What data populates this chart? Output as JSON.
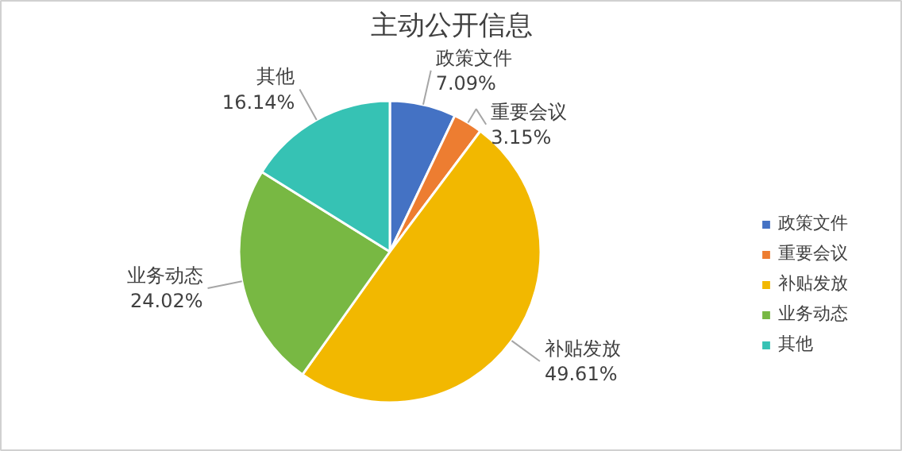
{
  "chart_data": {
    "type": "pie",
    "title": "主动公开信息",
    "categories": [
      "政策文件",
      "重要会议",
      "补贴发放",
      "业务动态",
      "其他"
    ],
    "values": [
      7.09,
      3.15,
      49.61,
      24.02,
      16.14
    ],
    "colors": [
      "#4472c4",
      "#ed7d31",
      "#f2b800",
      "#78b843",
      "#36c2b4"
    ],
    "value_labels": [
      "7.09%",
      "3.15%",
      "49.61%",
      "24.02%",
      "16.14%"
    ],
    "legend": "right"
  }
}
